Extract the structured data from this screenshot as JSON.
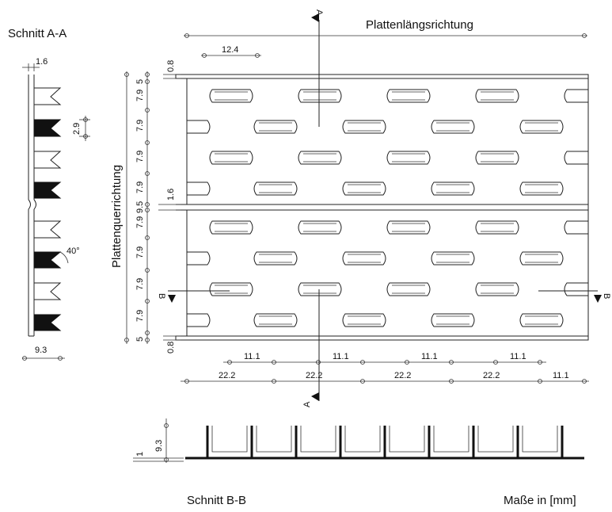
{
  "labels": {
    "section_aa": "Schnitt A-A",
    "section_bb": "Schnitt B-B",
    "longitudinal": "Plattenlängsrichtung",
    "transverse": "Plattenquerrichtung",
    "units": "Maße in [mm]",
    "cut_a": "A",
    "cut_b": "B"
  },
  "dimensions": {
    "aa_thickness": "1.6",
    "aa_slot_height": "2.9",
    "aa_angle": "40°",
    "aa_depth": "9.3",
    "top_slot_length": "12.4",
    "edge_top": "0.8",
    "edge_bottom": "0.8",
    "joint_gap": "1.6",
    "pitch_half": "11.1",
    "pitch_full": "22.2",
    "bb_thickness": "1",
    "bb_height": "9.3",
    "vertical": [
      "5",
      "7.9",
      "7.9",
      "7.9",
      "7.9",
      "9.5",
      "7.9",
      "7.9",
      "7.9",
      "7.9",
      "5"
    ]
  }
}
